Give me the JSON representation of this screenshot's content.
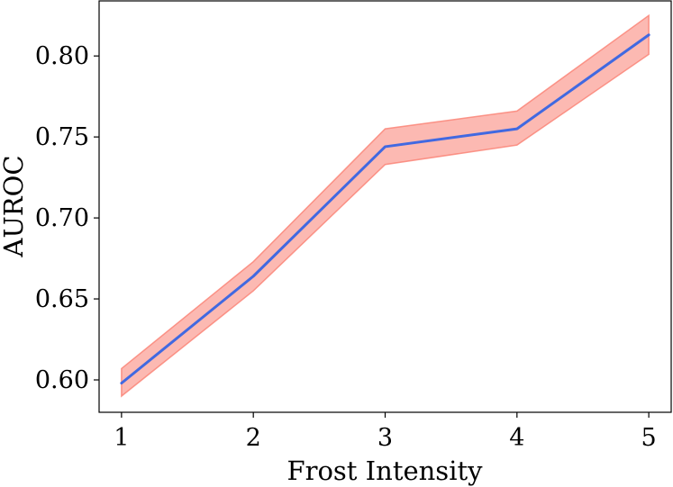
{
  "chart_data": {
    "type": "line",
    "title": "",
    "xlabel": "Frost Intensity",
    "ylabel": "AUROC",
    "x": [
      1,
      2,
      3,
      4,
      5
    ],
    "series": [
      {
        "name": "AUROC",
        "color": "#4169e1",
        "values": [
          0.598,
          0.664,
          0.744,
          0.755,
          0.813
        ],
        "band_lower": [
          0.59,
          0.655,
          0.733,
          0.745,
          0.801
        ],
        "band_upper": [
          0.607,
          0.673,
          0.755,
          0.766,
          0.825
        ],
        "band_color": "#fa8072"
      }
    ],
    "xlim": [
      0.83,
      5.17
    ],
    "ylim": [
      0.58,
      0.834
    ],
    "xticks": [
      {
        "value": 1,
        "label": "1"
      },
      {
        "value": 2,
        "label": "2"
      },
      {
        "value": 3,
        "label": "3"
      },
      {
        "value": 4,
        "label": "4"
      },
      {
        "value": 5,
        "label": "5"
      }
    ],
    "yticks": [
      {
        "value": 0.6,
        "label": "0.60"
      },
      {
        "value": 0.65,
        "label": "0.65"
      },
      {
        "value": 0.7,
        "label": "0.70"
      },
      {
        "value": 0.75,
        "label": "0.75"
      },
      {
        "value": 0.8,
        "label": "0.80"
      }
    ],
    "grid": false,
    "legend": "none"
  }
}
